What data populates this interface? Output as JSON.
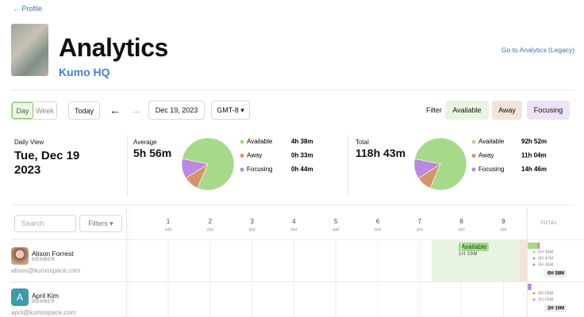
{
  "nav": {
    "back": "Profile"
  },
  "header": {
    "title": "Analytics",
    "subtitle": "Kumo HQ",
    "legacy_link": "Go to Analytics (Legacy)"
  },
  "toolbar": {
    "view_options": [
      "Day",
      "Week"
    ],
    "today": "Today",
    "date": "Dec 19, 2023",
    "timezone": "GMT-8",
    "filter_label": "Filter",
    "filters": [
      "Available",
      "Away",
      "Focusing"
    ]
  },
  "summary": {
    "view_label": "Daily View",
    "date": "Tue, Dec 19 2023",
    "average": {
      "label": "Average",
      "value": "5h 56m",
      "breakdown": [
        {
          "status": "Available",
          "duration": "4h 38m"
        },
        {
          "status": "Away",
          "duration": "0h 33m"
        },
        {
          "status": "Focusing",
          "duration": "0h 44m"
        }
      ]
    },
    "total": {
      "label": "Total",
      "value": "118h 43m",
      "breakdown": [
        {
          "status": "Available",
          "duration": "92h 52m"
        },
        {
          "status": "Away",
          "duration": "11h 04m"
        },
        {
          "status": "Focusing",
          "duration": "14h 46m"
        }
      ]
    }
  },
  "timeline": {
    "search_placeholder": "Search",
    "filters_button": "Filters",
    "hours": [
      {
        "hour": "1",
        "period": "AM"
      },
      {
        "hour": "2",
        "period": "AM"
      },
      {
        "hour": "3",
        "period": "AM"
      },
      {
        "hour": "4",
        "period": "AM"
      },
      {
        "hour": "5",
        "period": "AM"
      },
      {
        "hour": "6",
        "period": "AM"
      },
      {
        "hour": "7",
        "period": "AM"
      },
      {
        "hour": "8",
        "period": "AM"
      },
      {
        "hour": "9",
        "period": "AM"
      }
    ],
    "total_header": "TOTAL",
    "members": [
      {
        "name": "Alison Forrest",
        "role": "MEMBER",
        "email": "alison@kumospace.com",
        "session": {
          "status": "Available",
          "duration": "1H 29M"
        },
        "totals": [
          "5H 34M",
          "0H 47M",
          "0H 36M"
        ],
        "total": "6H 58M"
      },
      {
        "avatar_letter": "A",
        "name": "April Kim",
        "role": "MEMBER",
        "email": "april@kumospace.com",
        "totals": [
          "0H 05M",
          "2H 05M"
        ],
        "total": "2H 10M"
      }
    ]
  }
}
